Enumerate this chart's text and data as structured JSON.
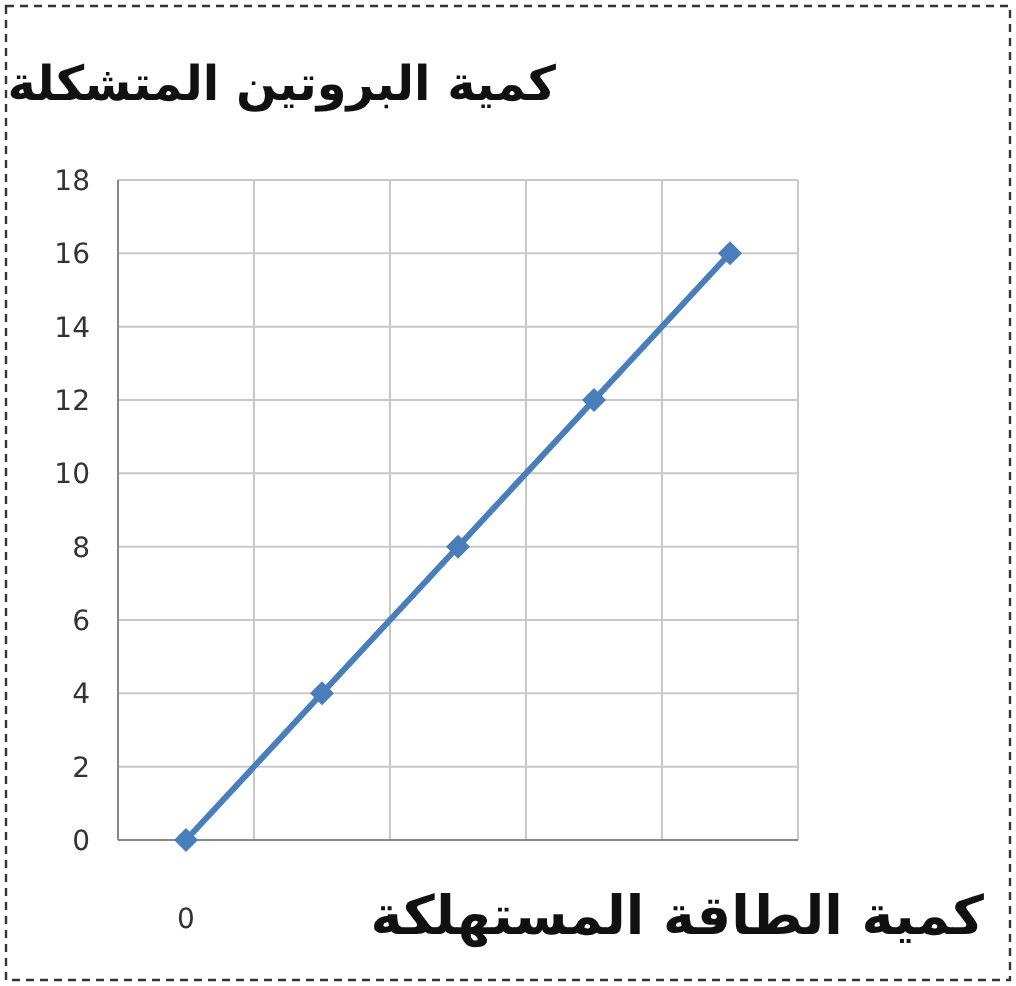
{
  "chart_data": {
    "type": "line",
    "title": "كمية البروتين المتشكلة",
    "xlabel": "كمية الطاقة المستهلكة",
    "categories": [
      "0",
      null,
      null,
      null,
      null
    ],
    "series": [
      {
        "color": "#4a7ebb",
        "values": [
          0,
          4,
          8,
          12,
          16
        ]
      }
    ],
    "ylim": [
      0,
      18
    ],
    "yticks": [
      0,
      2,
      4,
      6,
      8,
      10,
      12,
      14,
      16,
      18
    ],
    "grid": true,
    "marker": "diamond",
    "line_style": "solid"
  }
}
